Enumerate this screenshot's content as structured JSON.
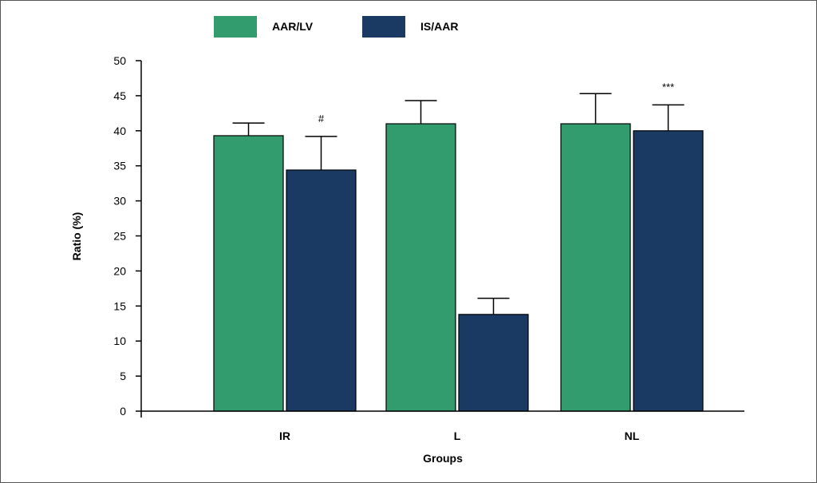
{
  "chart_data": {
    "type": "bar",
    "title": "",
    "xlabel": "Groups",
    "ylabel": "Ratio (%)",
    "ylim": [
      0,
      50
    ],
    "yticks": [
      0,
      5,
      10,
      15,
      20,
      25,
      30,
      35,
      40,
      45,
      50
    ],
    "categories": [
      "IR",
      "L",
      "NL"
    ],
    "series": [
      {
        "name": "AAR/LV",
        "color": "#339c6e",
        "values": [
          39.3,
          41.0,
          41.0
        ],
        "errors": [
          1.8,
          3.3,
          4.3
        ]
      },
      {
        "name": "IS/AAR",
        "color": "#1b3a63",
        "values": [
          34.4,
          13.8,
          40.0
        ],
        "errors": [
          4.8,
          2.3,
          3.7
        ]
      }
    ],
    "annotations": [
      {
        "category": "IR",
        "series": "IS/AAR",
        "text": "#"
      },
      {
        "category": "NL",
        "series": "IS/AAR",
        "text": "***"
      }
    ],
    "legend_position": "top",
    "grid": false
  }
}
